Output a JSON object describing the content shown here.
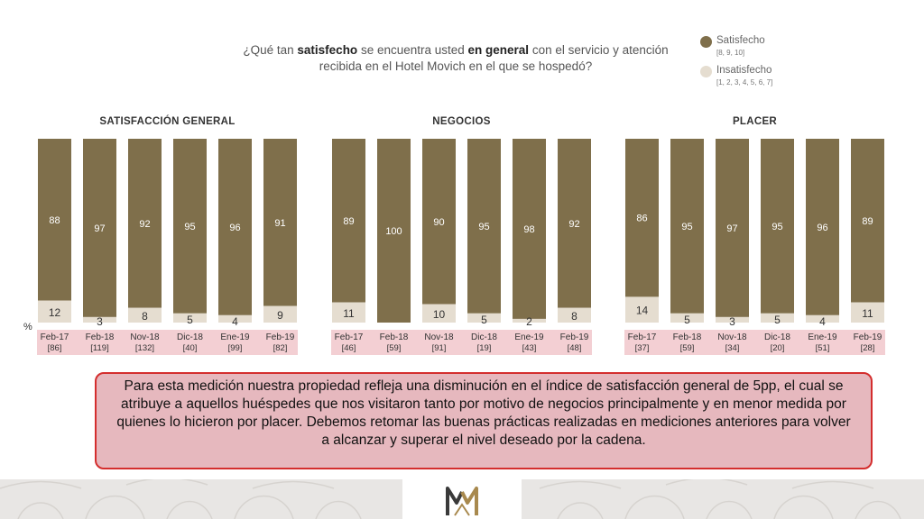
{
  "question": {
    "pre": "¿Qué tan ",
    "bold1": "satisfecho",
    "mid": " se encuentra usted ",
    "bold2": "en general",
    "post": " con el servicio y atención recibida en el Hotel Movich en el que se hospedó?"
  },
  "legend": {
    "satisfied": {
      "label": "Satisfecho",
      "sub": "[8, 9, 10]",
      "color": "#7f6f4b"
    },
    "dissatisfied": {
      "label": "Insatisfecho",
      "sub": "[1, 2, 3, 4, 5, 6, 7]",
      "color": "#e5ddd0"
    }
  },
  "percent_symbol": "%",
  "chart_data": [
    {
      "type": "bar",
      "stacked": true,
      "title": "SATISFACCIÓN GENERAL",
      "categories": [
        "Feb-17",
        "Feb-18",
        "Nov-18",
        "Dic-18",
        "Ene-19",
        "Feb-19"
      ],
      "base_n": [
        "[86]",
        "[119]",
        "[132]",
        "[40]",
        "[99]",
        "[82]"
      ],
      "series": [
        {
          "name": "Satisfecho",
          "values": [
            88,
            97,
            92,
            95,
            96,
            91
          ]
        },
        {
          "name": "Insatisfecho",
          "values": [
            12,
            3,
            8,
            5,
            4,
            9
          ]
        }
      ],
      "ylim": [
        0,
        100
      ]
    },
    {
      "type": "bar",
      "stacked": true,
      "title": "NEGOCIOS",
      "categories": [
        "Feb-17",
        "Feb-18",
        "Nov-18",
        "Dic-18",
        "Ene-19",
        "Feb-19"
      ],
      "base_n": [
        "[46]",
        "[59]",
        "[91]",
        "[19]",
        "[43]",
        "[48]"
      ],
      "series": [
        {
          "name": "Satisfecho",
          "values": [
            89,
            100,
            90,
            95,
            98,
            92
          ]
        },
        {
          "name": "Insatisfecho",
          "values": [
            11,
            null,
            10,
            5,
            2,
            8
          ]
        }
      ],
      "ylim": [
        0,
        100
      ]
    },
    {
      "type": "bar",
      "stacked": true,
      "title": "PLACER",
      "categories": [
        "Feb-17",
        "Feb-18",
        "Nov-18",
        "Dic-18",
        "Ene-19",
        "Feb-19"
      ],
      "base_n": [
        "[37]",
        "[59]",
        "[34]",
        "[20]",
        "[51]",
        "[28]"
      ],
      "series": [
        {
          "name": "Satisfecho",
          "values": [
            86,
            95,
            97,
            95,
            96,
            89
          ]
        },
        {
          "name": "Insatisfecho",
          "values": [
            14,
            5,
            3,
            5,
            4,
            11
          ]
        }
      ],
      "ylim": [
        0,
        100
      ]
    }
  ],
  "callout": {
    "text": "Para esta medición nuestra propiedad refleja una disminución en el índice de satisfacción general de 5pp, el cual se atribuye a aquellos huéspedes que nos visitaron tanto por motivo de negocios principalmente y en menor medida por quienes lo hicieron por placer. Debemos retomar las buenas prácticas realizadas en mediciones anteriores para volver a alcanzar y superar el nivel deseado por la cadena.",
    "background": "#e6b8be",
    "border": "#d42e2e"
  },
  "colors": {
    "label_band": "#f3cfd3",
    "footer": "#e8e6e4",
    "logo_dark": "#3a3a3a",
    "logo_gold": "#a8894e"
  }
}
